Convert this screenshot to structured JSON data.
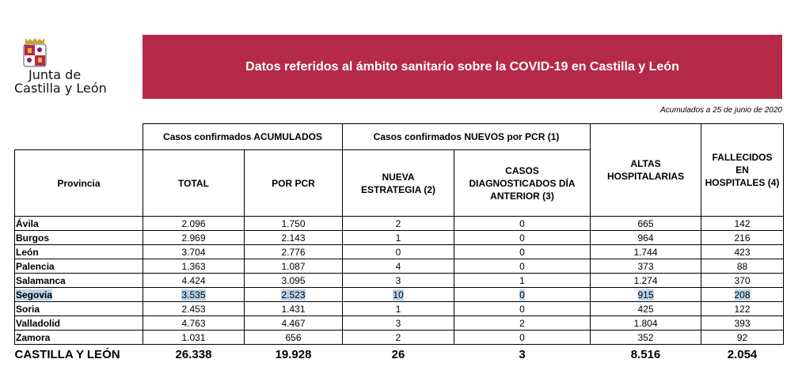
{
  "logo": {
    "line1": "Junta de",
    "line2": "Castilla y León"
  },
  "banner": {
    "title": "Datos referidos al ámbito sanitario sobre la COVID-19 en Castilla y León"
  },
  "note": "Acumulados a 25 de junio de 2020",
  "headers": {
    "group_acumulados": "Casos confirmados ACUMULADOS",
    "group_nuevos": "Casos confirmados NUEVOS por PCR (1)",
    "provincia": "Provincia",
    "total": "TOTAL",
    "por_pcr": "POR PCR",
    "nueva_estrategia": "NUEVA ESTRATEGIA (2)",
    "casos_diag": "CASOS DIAGNOSTICADOS DÍA ANTERIOR (3)",
    "altas": "ALTAS HOSPITALARIAS",
    "fallecidos": "FALLECIDOS EN HOSPITALES (4)"
  },
  "rows": [
    [
      "Ávila",
      "2.096",
      "1.750",
      "2",
      "0",
      "665",
      "142"
    ],
    [
      "Burgos",
      "2.969",
      "2.143",
      "1",
      "0",
      "964",
      "216"
    ],
    [
      "León",
      "3.704",
      "2.776",
      "0",
      "0",
      "1.744",
      "423"
    ],
    [
      "Palencia",
      "1.363",
      "1.087",
      "4",
      "0",
      "373",
      "88"
    ],
    [
      "Salamanca",
      "4.424",
      "3.095",
      "3",
      "1",
      "1.274",
      "370"
    ],
    [
      "Segovia",
      "3.535",
      "2.523",
      "10",
      "0",
      "915",
      "208"
    ],
    [
      "Soria",
      "2.453",
      "1.431",
      "1",
      "0",
      "425",
      "122"
    ],
    [
      "Valladolid",
      "4.763",
      "4.467",
      "3",
      "2",
      "1.804",
      "393"
    ],
    [
      "Zamora",
      "1.031",
      "656",
      "2",
      "0",
      "352",
      "92"
    ]
  ],
  "highlighted_row": "Segovia",
  "total_row": [
    "CASTILLA Y LEÓN",
    "26.338",
    "19.928",
    "26",
    "3",
    "8.516",
    "2.054"
  ],
  "colors": {
    "banner": "#b52a48",
    "highlight": "#b9d3ea"
  }
}
